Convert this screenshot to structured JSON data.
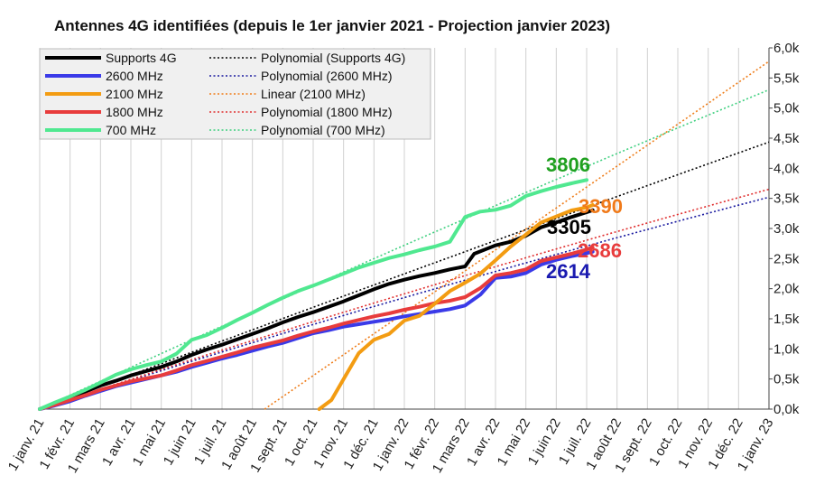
{
  "chart_data": {
    "type": "line",
    "title": "Antennes 4G identifiées (depuis le 1er janvier 2021 - Projection janvier 2023)",
    "xlabel": "",
    "ylabel": "",
    "x_ticks": [
      "1 janv. 21",
      "1 févr. 21",
      "1 mars 21",
      "1 avr. 21",
      "1 mai 21",
      "1 juin 21",
      "1 juil. 21",
      "1 août 21",
      "1 sept. 21",
      "1 oct. 21",
      "1 nov. 21",
      "1 déc. 21",
      "1 janv. 22",
      "1 févr. 22",
      "1 mars 22",
      "1 avr. 22",
      "1 mai 22",
      "1 juin 22",
      "1 juil. 22",
      "1 août 22",
      "1 sept. 22",
      "1 oct. 22",
      "1 nov. 22",
      "1 déc. 22",
      "1 janv. 23"
    ],
    "xlim_months": [
      0,
      24
    ],
    "y_ticks": [
      "0,0k",
      "0,5k",
      "1,0k",
      "1,5k",
      "2,0k",
      "2,5k",
      "3,0k",
      "3,5k",
      "4,0k",
      "4,5k",
      "5,0k",
      "5,5k",
      "6,0k"
    ],
    "ylim": [
      0,
      6000
    ],
    "y_axis_side": "right",
    "grid": "vertical",
    "legend_position": "top-left",
    "legend": [
      {
        "label": "Supports 4G",
        "color": "#000000",
        "style": "solid"
      },
      {
        "label": "Polynomial (Supports 4G)",
        "color": "#000000",
        "style": "dotted"
      },
      {
        "label": "2600 MHz",
        "color": "#3a3ae8",
        "style": "solid"
      },
      {
        "label": "Polynomial (2600 MHz)",
        "color": "#1a1aa0",
        "style": "dotted"
      },
      {
        "label": "2100 MHz",
        "color": "#f39c12",
        "style": "solid"
      },
      {
        "label": "Linear (2100 MHz)",
        "color": "#ef7d1a",
        "style": "dotted"
      },
      {
        "label": "1800 MHz",
        "color": "#e83c3c",
        "style": "solid"
      },
      {
        "label": "Polynomial (1800 MHz)",
        "color": "#e03030",
        "style": "dotted"
      },
      {
        "label": "700 MHz",
        "color": "#50e890",
        "style": "solid"
      },
      {
        "label": "Polynomial (700 MHz)",
        "color": "#40d080",
        "style": "dotted"
      }
    ],
    "series": [
      {
        "name": "Supports 4G",
        "color": "#000000",
        "width": 4,
        "points": [
          [
            0,
            0
          ],
          [
            0.5,
            80
          ],
          [
            1,
            180
          ],
          [
            1.5,
            290
          ],
          [
            2,
            390
          ],
          [
            2.5,
            470
          ],
          [
            3,
            560
          ],
          [
            3.5,
            630
          ],
          [
            4,
            700
          ],
          [
            4.5,
            790
          ],
          [
            5,
            900
          ],
          [
            5.5,
            990
          ],
          [
            6,
            1070
          ],
          [
            6.5,
            1160
          ],
          [
            7,
            1250
          ],
          [
            7.5,
            1340
          ],
          [
            8,
            1440
          ],
          [
            8.5,
            1530
          ],
          [
            9,
            1610
          ],
          [
            9.5,
            1700
          ],
          [
            10,
            1790
          ],
          [
            10.5,
            1890
          ],
          [
            11,
            1990
          ],
          [
            11.5,
            2080
          ],
          [
            12,
            2150
          ],
          [
            12.5,
            2210
          ],
          [
            13,
            2260
          ],
          [
            13.5,
            2320
          ],
          [
            14,
            2370
          ],
          [
            14.3,
            2580
          ],
          [
            14.7,
            2660
          ],
          [
            15,
            2720
          ],
          [
            15.5,
            2780
          ],
          [
            16,
            2880
          ],
          [
            16.5,
            3020
          ],
          [
            17,
            3100
          ],
          [
            17.5,
            3190
          ],
          [
            18,
            3270
          ],
          [
            18.2,
            3305
          ]
        ],
        "end_label": "3305",
        "end_label_color": "#000000"
      },
      {
        "name": "2600 MHz",
        "color": "#3a3ae8",
        "width": 4,
        "points": [
          [
            0,
            0
          ],
          [
            0.5,
            60
          ],
          [
            1,
            130
          ],
          [
            1.5,
            220
          ],
          [
            2,
            300
          ],
          [
            2.5,
            380
          ],
          [
            3,
            440
          ],
          [
            3.5,
            500
          ],
          [
            4,
            560
          ],
          [
            4.5,
            620
          ],
          [
            5,
            700
          ],
          [
            5.5,
            770
          ],
          [
            6,
            840
          ],
          [
            6.5,
            900
          ],
          [
            7,
            970
          ],
          [
            7.5,
            1040
          ],
          [
            8,
            1100
          ],
          [
            8.5,
            1180
          ],
          [
            9,
            1260
          ],
          [
            9.5,
            1310
          ],
          [
            10,
            1370
          ],
          [
            10.5,
            1410
          ],
          [
            11,
            1450
          ],
          [
            11.5,
            1490
          ],
          [
            12,
            1540
          ],
          [
            12.5,
            1580
          ],
          [
            13,
            1620
          ],
          [
            13.5,
            1660
          ],
          [
            14,
            1720
          ],
          [
            14.5,
            1900
          ],
          [
            15,
            2180
          ],
          [
            15.5,
            2200
          ],
          [
            16,
            2260
          ],
          [
            16.5,
            2400
          ],
          [
            17,
            2480
          ],
          [
            17.5,
            2540
          ],
          [
            18,
            2590
          ],
          [
            18.2,
            2614
          ]
        ],
        "end_label": "2614",
        "end_label_color": "#1a1ab0"
      },
      {
        "name": "1800 MHz",
        "color": "#e83c3c",
        "width": 4,
        "points": [
          [
            0,
            0
          ],
          [
            0.5,
            70
          ],
          [
            1,
            150
          ],
          [
            1.5,
            230
          ],
          [
            2,
            320
          ],
          [
            2.5,
            390
          ],
          [
            3,
            460
          ],
          [
            3.5,
            510
          ],
          [
            4,
            560
          ],
          [
            4.5,
            640
          ],
          [
            5,
            730
          ],
          [
            5.5,
            800
          ],
          [
            6,
            870
          ],
          [
            6.5,
            940
          ],
          [
            7,
            1020
          ],
          [
            7.5,
            1080
          ],
          [
            8,
            1140
          ],
          [
            8.5,
            1220
          ],
          [
            9,
            1290
          ],
          [
            9.5,
            1350
          ],
          [
            10,
            1420
          ],
          [
            10.5,
            1480
          ],
          [
            11,
            1540
          ],
          [
            11.5,
            1590
          ],
          [
            12,
            1650
          ],
          [
            12.5,
            1700
          ],
          [
            13,
            1760
          ],
          [
            13.5,
            1800
          ],
          [
            14,
            1860
          ],
          [
            14.5,
            2010
          ],
          [
            15,
            2220
          ],
          [
            15.5,
            2260
          ],
          [
            16,
            2320
          ],
          [
            16.5,
            2460
          ],
          [
            17,
            2520
          ],
          [
            17.5,
            2580
          ],
          [
            18,
            2650
          ],
          [
            18.2,
            2686
          ]
        ],
        "end_label": "2686",
        "end_label_color": "#e83c3c"
      },
      {
        "name": "2100 MHz",
        "color": "#f39c12",
        "width": 4,
        "points": [
          [
            9.2,
            0
          ],
          [
            9.6,
            150
          ],
          [
            10,
            500
          ],
          [
            10.5,
            930
          ],
          [
            11,
            1150
          ],
          [
            11.5,
            1250
          ],
          [
            12,
            1470
          ],
          [
            12.5,
            1550
          ],
          [
            13,
            1750
          ],
          [
            13.5,
            1960
          ],
          [
            14,
            2100
          ],
          [
            14.5,
            2250
          ],
          [
            15,
            2470
          ],
          [
            15.5,
            2700
          ],
          [
            16,
            2900
          ],
          [
            16.5,
            3100
          ],
          [
            17,
            3200
          ],
          [
            17.5,
            3300
          ],
          [
            18,
            3350
          ],
          [
            18.2,
            3390
          ]
        ],
        "end_label": "3390",
        "end_label_color": "#f07a1a"
      },
      {
        "name": "700 MHz",
        "color": "#50e890",
        "width": 4,
        "points": [
          [
            0,
            0
          ],
          [
            0.5,
            110
          ],
          [
            1,
            210
          ],
          [
            1.5,
            320
          ],
          [
            2,
            440
          ],
          [
            2.5,
            570
          ],
          [
            3,
            660
          ],
          [
            3.5,
            730
          ],
          [
            4,
            790
          ],
          [
            4.5,
            920
          ],
          [
            5,
            1150
          ],
          [
            5.5,
            1230
          ],
          [
            6,
            1350
          ],
          [
            6.5,
            1480
          ],
          [
            7,
            1600
          ],
          [
            7.5,
            1730
          ],
          [
            8,
            1850
          ],
          [
            8.5,
            1960
          ],
          [
            9,
            2050
          ],
          [
            9.5,
            2150
          ],
          [
            10,
            2250
          ],
          [
            10.5,
            2350
          ],
          [
            11,
            2430
          ],
          [
            11.5,
            2510
          ],
          [
            12,
            2570
          ],
          [
            12.5,
            2640
          ],
          [
            13,
            2700
          ],
          [
            13.5,
            2780
          ],
          [
            14,
            3190
          ],
          [
            14.5,
            3280
          ],
          [
            15,
            3310
          ],
          [
            15.5,
            3380
          ],
          [
            16,
            3540
          ],
          [
            16.5,
            3620
          ],
          [
            17,
            3690
          ],
          [
            17.5,
            3750
          ],
          [
            18,
            3806
          ]
        ],
        "end_label": "3806",
        "end_label_color": "#1fa01f"
      }
    ],
    "trendlines": [
      {
        "name": "Polynomial (Supports 4G)",
        "color": "#000000",
        "coeffs": [
          0,
          189.6,
          -0.2
        ],
        "x_range": [
          0,
          24
        ]
      },
      {
        "name": "Polynomial (2600 MHz)",
        "color": "#1a1aa0",
        "coeffs": [
          0,
          162.0,
          -0.64
        ],
        "x_range": [
          0,
          24
        ]
      },
      {
        "name": "Polynomial (1800 MHz)",
        "color": "#e03030",
        "coeffs": [
          0,
          167.0,
          -0.62
        ],
        "x_range": [
          0,
          24
        ]
      },
      {
        "name": "Polynomial (700 MHz)",
        "color": "#40d080",
        "coeffs": [
          0,
          232.5,
          -0.48
        ],
        "x_range": [
          0,
          24
        ]
      },
      {
        "name": "Linear (2100 MHz)",
        "color": "#ef7d1a",
        "coeffs": [
          -2576,
          348.0,
          0
        ],
        "x_range": [
          7.4,
          24
        ]
      }
    ]
  }
}
